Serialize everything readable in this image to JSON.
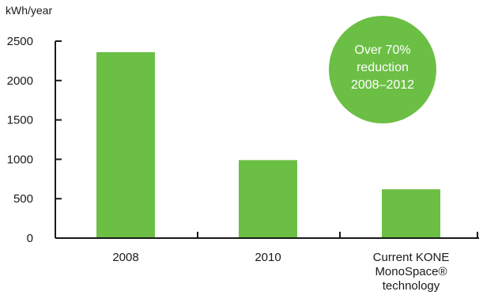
{
  "chart_data": {
    "type": "bar",
    "ylabel": "kWh/year",
    "categories": [
      [
        "2008"
      ],
      [
        "2010"
      ],
      [
        "Current KONE",
        "MonoSpace®",
        "technology"
      ]
    ],
    "values": [
      2360,
      990,
      620
    ],
    "ylim": [
      0,
      2500
    ],
    "yticks": [
      0,
      500,
      1000,
      1500,
      2000,
      2500
    ],
    "grid": false,
    "bar_color": "#6cbf45"
  },
  "badge": {
    "lines": [
      "Over 70%",
      "reduction",
      "2008–2012"
    ],
    "color": "#6cbf45",
    "text_color": "#ffffff"
  }
}
